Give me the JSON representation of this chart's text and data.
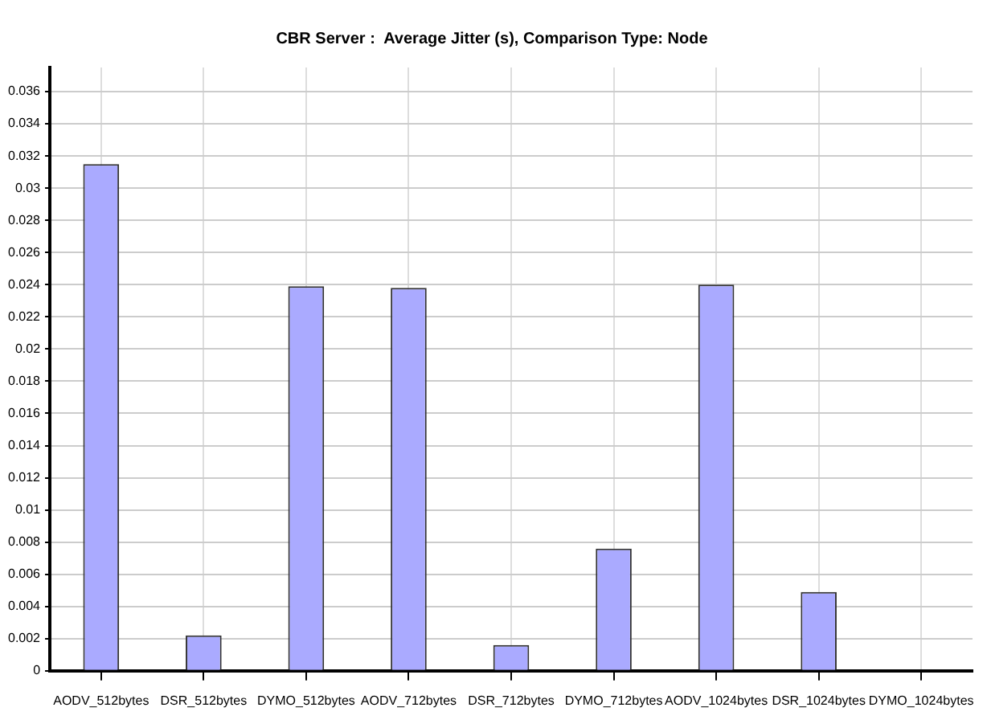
{
  "chart_data": {
    "type": "bar",
    "title": "CBR Server :  Average Jitter (s), Comparison Type: Node",
    "categories": [
      "AODV_512bytes",
      "DSR_512bytes",
      "DYMO_512bytes",
      "AODV_712bytes",
      "DSR_712bytes",
      "DYMO_712bytes",
      "AODV_1024bytes",
      "DSR_1024bytes",
      "DYMO_1024bytes"
    ],
    "values": [
      0.0315,
      0.0022,
      0.0239,
      0.0238,
      0.0016,
      0.0076,
      0.024,
      0.0049,
      0
    ],
    "color": "#aaaaff",
    "ylim": [
      0,
      0.0375
    ],
    "yticks": [
      0,
      0.002,
      0.004,
      0.006,
      0.008,
      {
        "value": 0.01,
        "label": "0.01"
      },
      0.012,
      0.014,
      0.016,
      0.018,
      {
        "value": 0.02,
        "label": "0.02"
      },
      0.022,
      0.024,
      0.026,
      0.028,
      {
        "value": 0.03,
        "label": "0.03"
      },
      0.032,
      0.034,
      0.036
    ],
    "grid": true
  }
}
